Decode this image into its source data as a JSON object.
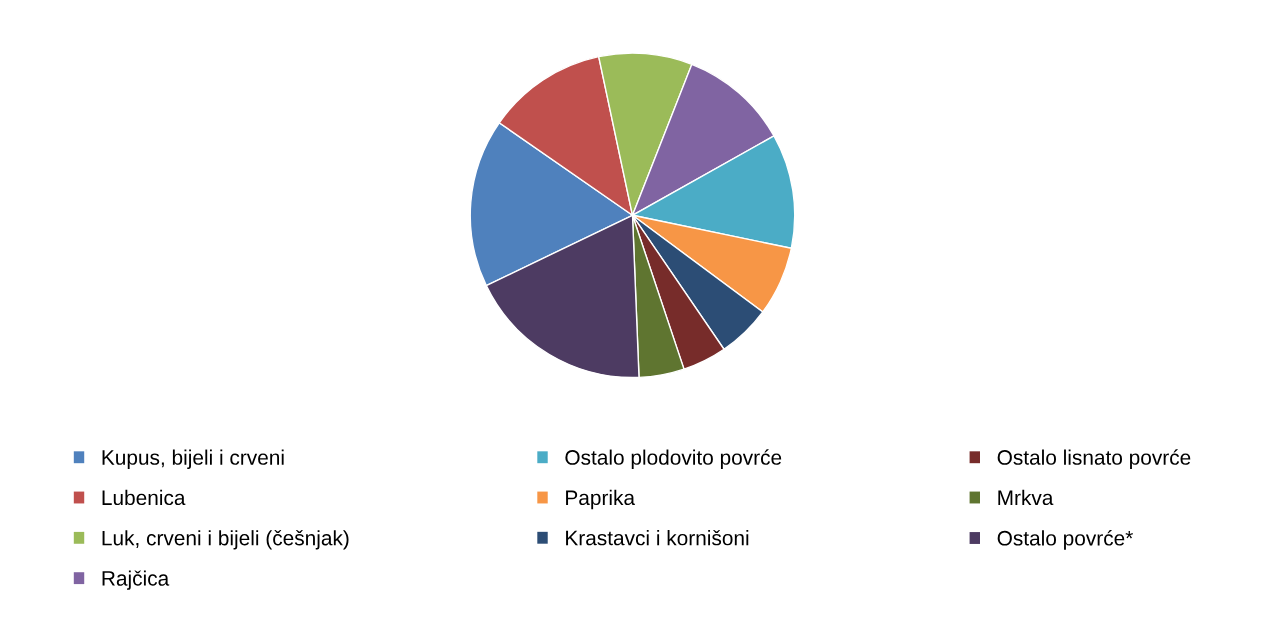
{
  "chart_data": {
    "type": "pie",
    "categories": [
      "Kupus, bijeli i crveni",
      "Lubenica",
      "Luk, crveni i bijeli (češnjak)",
      "Rajčica",
      "Ostalo plodovito povrće",
      "Paprika",
      "Krastavci i kornišoni",
      "Ostalo lisnato povrće",
      "Mrkva",
      "Ostalo povrće*"
    ],
    "values": [
      16.8,
      12.0,
      9.3,
      10.9,
      11.4,
      6.9,
      5.3,
      4.4,
      4.5,
      18.5
    ],
    "colors": [
      "#4f81bd",
      "#c0504d",
      "#9bbb59",
      "#8064a2",
      "#4bacc6",
      "#f79646",
      "#2c4d75",
      "#772c2a",
      "#5f7530",
      "#4d3b62"
    ],
    "legend": "bottom"
  }
}
